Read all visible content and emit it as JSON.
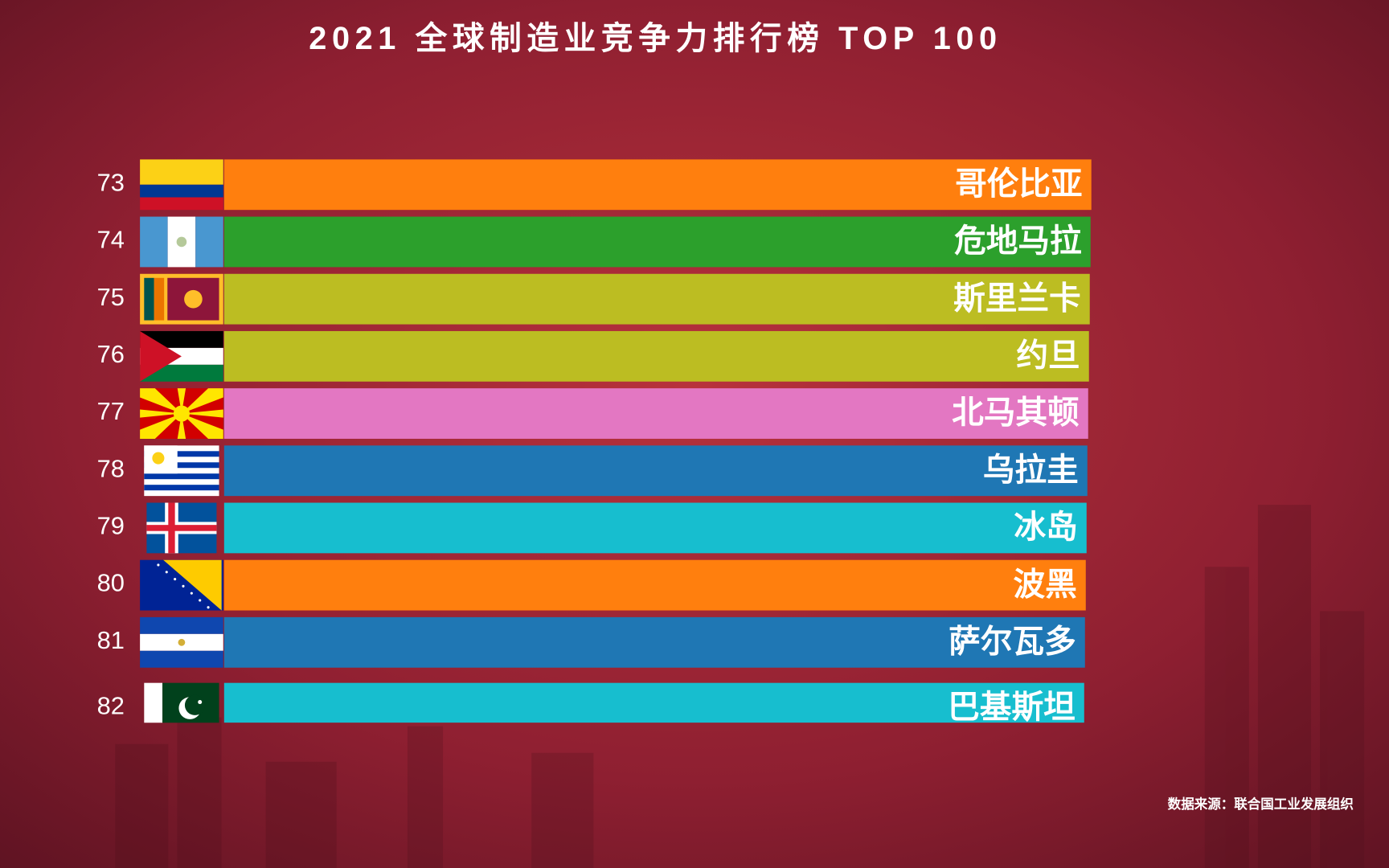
{
  "chart_data": {
    "type": "bar",
    "title": "2021 全球制造业竞争力排行榜 TOP 100",
    "source": "数据来源：联合国工业发展组织",
    "ranks": [
      73,
      74,
      75,
      76,
      77,
      78,
      79,
      80,
      81,
      82
    ],
    "categories": [
      "哥伦比亚",
      "危地马拉",
      "斯里兰卡",
      "约旦",
      "北马其顿",
      "乌拉圭",
      "冰岛",
      "波黑",
      "萨尔瓦多",
      "巴基斯坦"
    ],
    "colors": [
      "#ff7f0e",
      "#2ca02c",
      "#bcbd22",
      "#bcbd22",
      "#e377c2",
      "#1f77b4",
      "#17becf",
      "#ff7f0e",
      "#1f77b4",
      "#17becf"
    ]
  }
}
